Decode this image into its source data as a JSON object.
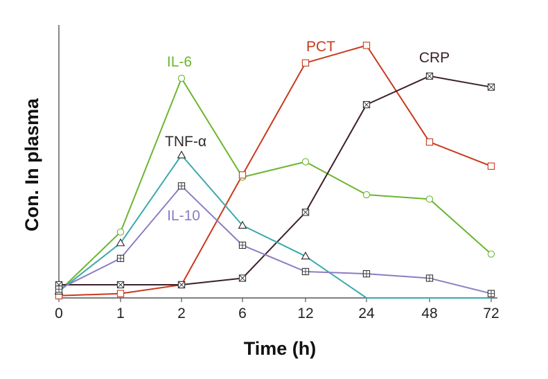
{
  "chart_data": {
    "type": "line",
    "title": "",
    "xlabel": "Time (h)",
    "ylabel": "Con. In plasma",
    "categories": [
      "0",
      "1",
      "2",
      "6",
      "12",
      "24",
      "48",
      "72"
    ],
    "ylim": [
      0,
      100
    ],
    "grid": false,
    "series": [
      {
        "name": "IL-6",
        "color": "#6bb52f",
        "marker": "circle",
        "values": [
          3,
          30,
          100,
          55,
          62,
          47,
          45,
          20
        ]
      },
      {
        "name": "PCT",
        "color": "#c8381c",
        "marker": "square",
        "values": [
          1,
          2,
          6,
          56,
          107,
          115,
          71,
          60
        ]
      },
      {
        "name": "CRP",
        "color": "#3c1f2a",
        "marker": "square-x",
        "values": [
          6,
          6,
          6,
          9,
          39,
          88,
          101,
          96
        ]
      },
      {
        "name": "TNF-α",
        "color": "#3aa9ac",
        "marker": "triangle",
        "values": [
          3,
          25,
          65,
          33,
          19,
          -2,
          -2,
          -2
        ]
      },
      {
        "name": "IL-10",
        "color": "#8c7cc2",
        "marker": "square-plus",
        "values": [
          4,
          18,
          51,
          24,
          12,
          11,
          9,
          2
        ]
      }
    ]
  }
}
